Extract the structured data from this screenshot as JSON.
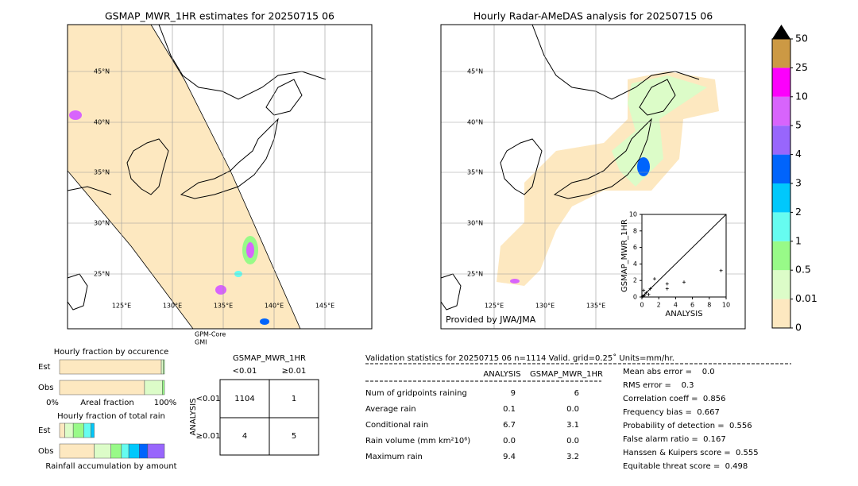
{
  "left_map": {
    "title": "GSMAP_MWR_1HR estimates for 20250715 06",
    "lat_labels": [
      "45°N",
      "40°N",
      "35°N",
      "30°N",
      "25°N"
    ],
    "lon_labels": [
      "125°E",
      "130°E",
      "135°E",
      "140°E",
      "145°E"
    ],
    "satellite_label": [
      "GPM-Core",
      "GMI"
    ]
  },
  "right_map": {
    "title": "Hourly Radar-AMeDAS analysis for 20250715 06",
    "lat_labels": [
      "45°N",
      "40°N",
      "35°N",
      "30°N",
      "25°N"
    ],
    "lon_labels": [
      "125°E",
      "130°E",
      "135°E"
    ],
    "credit": "Provided by JWA/JMA"
  },
  "scatter": {
    "type": "scatter",
    "x_label": "ANALYSIS",
    "y_label": "GSMAP_MWR_1HR",
    "xlim": [
      0,
      10
    ],
    "ylim": [
      0,
      10
    ],
    "xticks": [
      0,
      2,
      4,
      6,
      8,
      10
    ],
    "yticks": [
      0,
      2,
      4,
      6,
      8,
      10
    ],
    "x": [
      0.1,
      0.3,
      0.5,
      0.8,
      1.0,
      1.5,
      3.0,
      3.0,
      5.0,
      9.4,
      0.2
    ],
    "y": [
      0.1,
      0.2,
      0.5,
      0.3,
      1.0,
      2.2,
      1.6,
      1.0,
      1.8,
      3.2,
      0.8
    ]
  },
  "colorbar": {
    "levels": [
      0,
      0.01,
      0.5,
      1,
      2,
      3,
      4,
      5,
      10,
      25,
      50
    ],
    "colors": [
      "#fde8c0",
      "#dcfcc8",
      "#98fa88",
      "#66fcf0",
      "#00c8fc",
      "#0064fc",
      "#9866fc",
      "#d864fc",
      "#fc00fc",
      "#cc9944"
    ]
  },
  "fraction_by_occurrence": {
    "title": "Hourly fraction by occurence",
    "x_start": "0%",
    "x_label": "Areal fraction",
    "x_end": "100%",
    "rows": [
      {
        "label": "Est",
        "segments": [
          0.97,
          0.02,
          0.01
        ]
      },
      {
        "label": "Obs",
        "segments": [
          0.81,
          0.17,
          0.02
        ]
      }
    ]
  },
  "fraction_of_total_rain": {
    "title": "Hourly fraction of total rain",
    "x_label": "Rainfall accumulation by amount",
    "rows": [
      {
        "label": "Est",
        "segments": [
          0.05,
          0.08,
          0.1,
          0.07,
          0.03
        ]
      },
      {
        "label": "Obs",
        "segments": [
          0.33,
          0.16,
          0.1,
          0.07,
          0.1,
          0.08,
          0.16
        ]
      }
    ]
  },
  "contingency": {
    "title": "GSMAP_MWR_1HR",
    "columns": [
      "<0.01",
      "≥0.01"
    ],
    "row_title": "ANALYSIS",
    "rows": [
      "<0.01",
      "≥0.01"
    ],
    "cells": [
      [
        "1104",
        "1"
      ],
      [
        "4",
        "5"
      ]
    ]
  },
  "validation": {
    "title": "Validation statistics for 20250715 06  n=1114 Valid. grid=0.25˚ Units=mm/hr.",
    "columns": [
      "ANALYSIS",
      "GSMAP_MWR_1HR"
    ],
    "rows": [
      [
        "Num of gridpoints raining",
        "9",
        "6"
      ],
      [
        "Average rain",
        "0.1",
        "0.0"
      ],
      [
        "Conditional rain",
        "6.7",
        "3.1"
      ],
      [
        "Rain volume (mm km²10⁶)",
        "0.0",
        "0.0"
      ],
      [
        "Maximum rain",
        "9.4",
        "3.2"
      ]
    ],
    "scores": [
      "Mean abs error =    0.0",
      "RMS error =    0.3",
      "Correlation coeff =  0.856",
      "Frequency bias =  0.667",
      "Probability of detection =  0.556",
      "False alarm ratio =  0.167",
      "Hanssen & Kuipers score =  0.555",
      "Equitable threat score =  0.498"
    ]
  }
}
